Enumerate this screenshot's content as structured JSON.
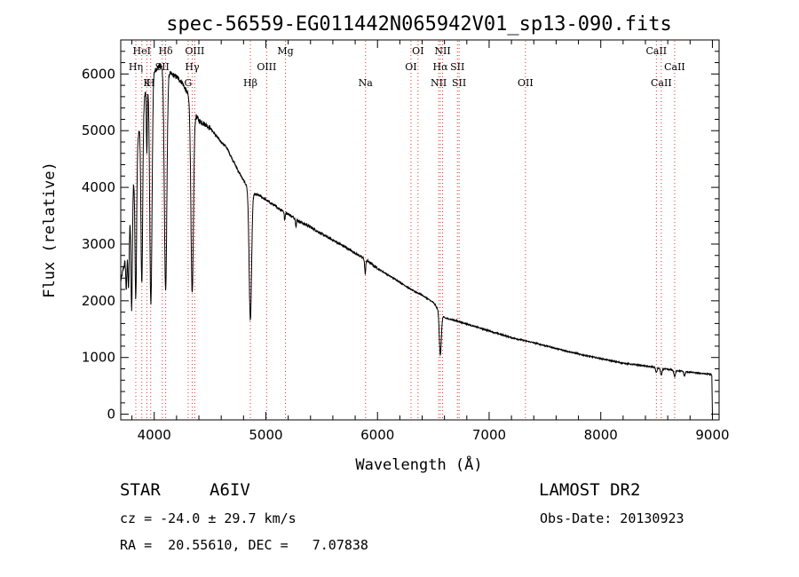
{
  "chart_data": {
    "type": "line",
    "title": "spec-56559-EG011442N065942V01_sp13-090.fits",
    "xlabel": "Wavelength (Å)",
    "ylabel": "Flux (relative)",
    "xlim": [
      3700,
      9060
    ],
    "ylim": [
      -100,
      6600
    ],
    "xticks": [
      4000,
      5000,
      6000,
      7000,
      8000,
      9000
    ],
    "yticks": [
      0,
      1000,
      2000,
      3000,
      4000,
      5000,
      6000
    ],
    "grid": false,
    "line_markers": [
      {
        "label": "HeI",
        "wave": 3889,
        "row": 0
      },
      {
        "label": "Hη",
        "wave": 3835,
        "row": 1
      },
      {
        "label": "K",
        "wave": 3934,
        "row": 2
      },
      {
        "label": "H",
        "wave": 3968,
        "row": 2
      },
      {
        "label": "Hδ",
        "wave": 4102,
        "row": 0
      },
      {
        "label": "SII",
        "wave": 4072,
        "row": 1
      },
      {
        "label": "OIII",
        "wave": 4363,
        "row": 0
      },
      {
        "label": "Hγ",
        "wave": 4340,
        "row": 1
      },
      {
        "label": "G",
        "wave": 4304,
        "row": 2
      },
      {
        "label": "Hβ",
        "wave": 4861,
        "row": 2
      },
      {
        "label": "OIII",
        "wave": 5007,
        "row": 1
      },
      {
        "label": "Mg",
        "wave": 5175,
        "row": 0
      },
      {
        "label": "Na",
        "wave": 5893,
        "row": 2
      },
      {
        "label": "OI",
        "wave": 6363,
        "row": 0
      },
      {
        "label": "OI",
        "wave": 6300,
        "row": 1
      },
      {
        "label": "NII",
        "wave": 6583,
        "row": 0
      },
      {
        "label": "Hα",
        "wave": 6563,
        "row": 1
      },
      {
        "label": "SII",
        "wave": 6716,
        "row": 1
      },
      {
        "label": "NII",
        "wave": 6548,
        "row": 2
      },
      {
        "label": "SII",
        "wave": 6731,
        "row": 2
      },
      {
        "label": "OII",
        "wave": 7325,
        "row": 2
      },
      {
        "label": "CaII",
        "wave": 8498,
        "row": 0
      },
      {
        "label": "CaII",
        "wave": 8662,
        "row": 1
      },
      {
        "label": "CaII",
        "wave": 8542,
        "row": 2
      }
    ],
    "continuum": [
      [
        3700,
        2350
      ],
      [
        3760,
        2900
      ],
      [
        3800,
        3800
      ],
      [
        3850,
        4800
      ],
      [
        3900,
        5500
      ],
      [
        3950,
        5900
      ],
      [
        4000,
        6050
      ],
      [
        4050,
        6150
      ],
      [
        4100,
        6100
      ],
      [
        4150,
        6000
      ],
      [
        4200,
        5950
      ],
      [
        4250,
        5850
      ],
      [
        4300,
        5650
      ],
      [
        4350,
        5350
      ],
      [
        4400,
        5180
      ],
      [
        4450,
        5120
      ],
      [
        4500,
        5050
      ],
      [
        4550,
        4920
      ],
      [
        4600,
        4800
      ],
      [
        4650,
        4700
      ],
      [
        4700,
        4500
      ],
      [
        4750,
        4300
      ],
      [
        4800,
        4120
      ],
      [
        4840,
        4000
      ],
      [
        4900,
        3880
      ],
      [
        4950,
        3850
      ],
      [
        5000,
        3780
      ],
      [
        5100,
        3650
      ],
      [
        5200,
        3530
      ],
      [
        5300,
        3400
      ],
      [
        5400,
        3300
      ],
      [
        5500,
        3180
      ],
      [
        5600,
        3070
      ],
      [
        5700,
        2960
      ],
      [
        5800,
        2840
      ],
      [
        5900,
        2720
      ],
      [
        6000,
        2570
      ],
      [
        6100,
        2450
      ],
      [
        6200,
        2330
      ],
      [
        6300,
        2200
      ],
      [
        6400,
        2100
      ],
      [
        6500,
        1970
      ],
      [
        6560,
        1800
      ],
      [
        6600,
        1700
      ],
      [
        6700,
        1650
      ],
      [
        6800,
        1590
      ],
      [
        6900,
        1530
      ],
      [
        7000,
        1470
      ],
      [
        7200,
        1350
      ],
      [
        7400,
        1260
      ],
      [
        7600,
        1160
      ],
      [
        7800,
        1060
      ],
      [
        8000,
        980
      ],
      [
        8200,
        900
      ],
      [
        8400,
        850
      ],
      [
        8600,
        790
      ],
      [
        8800,
        740
      ],
      [
        8950,
        710
      ],
      [
        9000,
        700
      ]
    ],
    "absorption_lines": [
      {
        "wave": 3750,
        "depth": 600,
        "width": 5
      },
      {
        "wave": 3770,
        "depth": 900,
        "width": 5
      },
      {
        "wave": 3798,
        "depth": 1900,
        "width": 6
      },
      {
        "wave": 3835,
        "depth": 2450,
        "width": 7
      },
      {
        "wave": 3889,
        "depth": 3050,
        "width": 8
      },
      {
        "wave": 3934,
        "depth": 1200,
        "width": 4
      },
      {
        "wave": 3970,
        "depth": 4000,
        "width": 10
      },
      {
        "wave": 4102,
        "depth": 3900,
        "width": 11
      },
      {
        "wave": 4340,
        "depth": 3300,
        "width": 11
      },
      {
        "wave": 4861,
        "depth": 2300,
        "width": 11
      },
      {
        "wave": 5169,
        "depth": 150,
        "width": 4
      },
      {
        "wave": 5270,
        "depth": 120,
        "width": 4
      },
      {
        "wave": 5890,
        "depth": 250,
        "width": 5
      },
      {
        "wave": 6563,
        "depth": 750,
        "width": 9
      },
      {
        "wave": 8498,
        "depth": 90,
        "width": 6
      },
      {
        "wave": 8542,
        "depth": 120,
        "width": 7
      },
      {
        "wave": 8662,
        "depth": 110,
        "width": 7
      },
      {
        "wave": 8750,
        "depth": 80,
        "width": 6
      }
    ]
  },
  "info": {
    "object_type": "STAR",
    "subclass": "A6IV",
    "survey": "LAMOST DR2",
    "cz": "cz = -24.0 ± 29.7 km/s",
    "obs_date": "Obs-Date: 20130923",
    "coords": "RA =  20.55610, DEC =   7.07838"
  }
}
